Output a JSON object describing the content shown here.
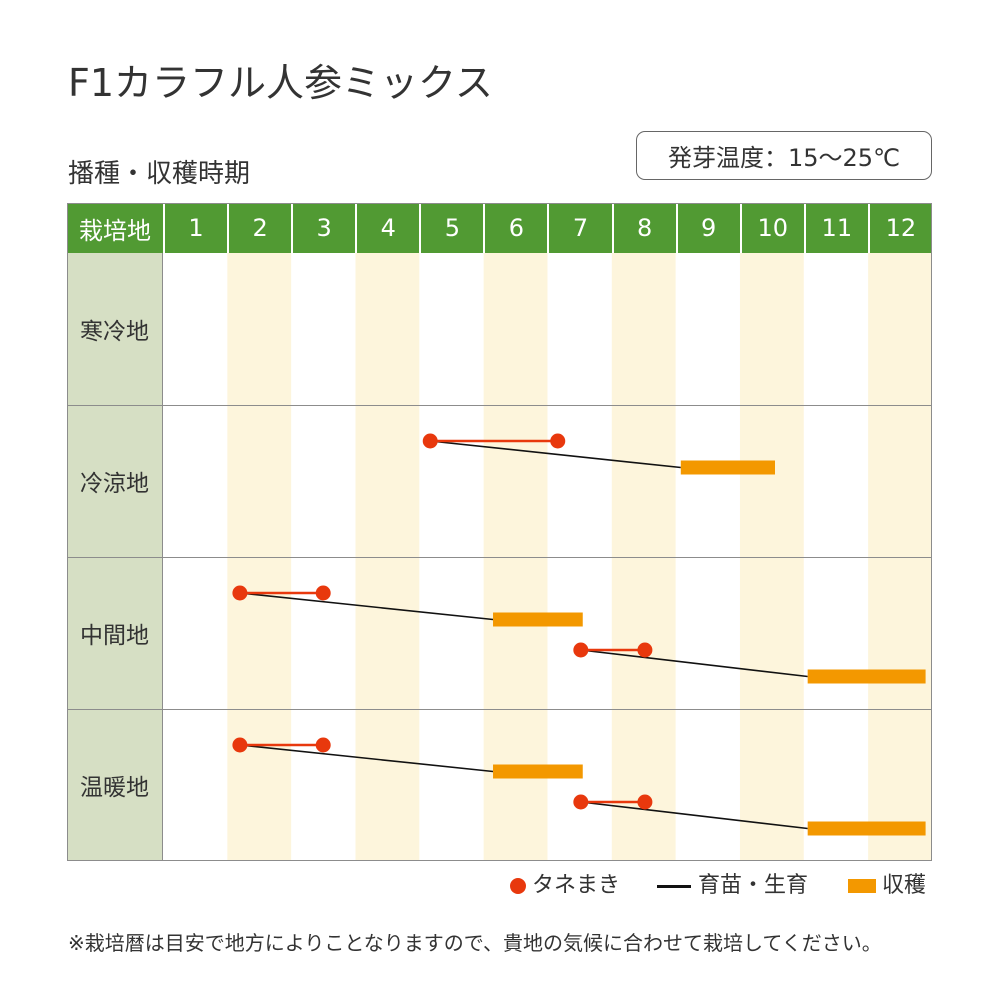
{
  "product_title": "F1カラフル人参ミックス",
  "germination_badge": "発芽温度：15〜25℃",
  "colors": {
    "header_green": "#519a33",
    "region_column": "#d6dfc4",
    "even_month_stripe": "#fdf5dc",
    "sowing": "#e8380d",
    "growing": "#111111",
    "harvest": "#f39800"
  },
  "chart_data": {
    "type": "table",
    "title": "播種・収穫時期",
    "row_header_label": "栽培地",
    "x_categories": [
      "1",
      "2",
      "3",
      "4",
      "5",
      "6",
      "7",
      "8",
      "9",
      "10",
      "11",
      "12"
    ],
    "xlim": [
      1,
      13
    ],
    "grid": false,
    "legend_placement": "bottom-right",
    "legend": [
      {
        "icon": "sowing-dot-icon",
        "label": "タネまき"
      },
      {
        "icon": "growing-line-icon",
        "label": "育苗・生育"
      },
      {
        "icon": "harvest-bar-icon",
        "label": "収穫"
      }
    ],
    "rows": [
      {
        "label": "寒冷地",
        "schedules": []
      },
      {
        "label": "冷涼地",
        "schedules": [
          {
            "sowing": [
              5.17,
              7.16
            ],
            "harvest": [
              9.08,
              10.55
            ]
          }
        ]
      },
      {
        "label": "中間地",
        "schedules": [
          {
            "sowing": [
              2.2,
              3.5
            ],
            "harvest": [
              6.15,
              7.55
            ]
          },
          {
            "sowing": [
              7.52,
              8.52
            ],
            "harvest": [
              11.06,
              12.9
            ]
          }
        ]
      },
      {
        "label": "温暖地",
        "schedules": [
          {
            "sowing": [
              2.2,
              3.5
            ],
            "harvest": [
              6.15,
              7.55
            ]
          },
          {
            "sowing": [
              7.52,
              8.52
            ],
            "harvest": [
              11.06,
              12.9
            ]
          }
        ]
      }
    ]
  },
  "footnote": "※栽培暦は目安で地方によりことなりますので、貴地の気候に合わせて栽培してください。"
}
